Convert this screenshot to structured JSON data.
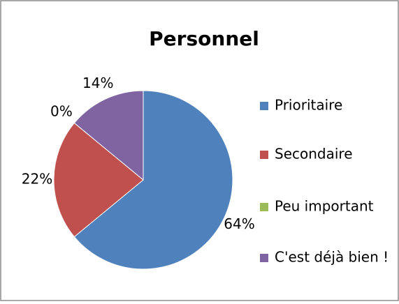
{
  "chart_data": {
    "type": "pie",
    "title": "Personnel",
    "categories": [
      "Prioritaire",
      "Secondaire",
      "Peu important",
      "C'est déjà bien !"
    ],
    "values": [
      64,
      22,
      0,
      14
    ],
    "value_labels": [
      "64%",
      "22%",
      "0%",
      "14%"
    ],
    "colors": [
      "#4f81bd",
      "#c0504d",
      "#9bbb59",
      "#8064a2"
    ],
    "legend": "right"
  }
}
